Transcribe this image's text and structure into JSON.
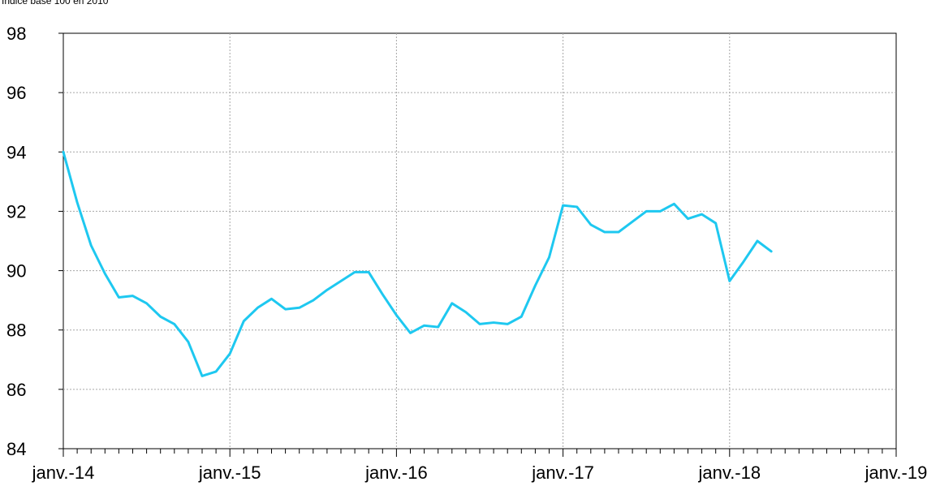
{
  "chart_data": {
    "type": "line",
    "title": "",
    "subtitle": "Indice base 100 en 2010",
    "xlabel": "",
    "ylabel": "",
    "ylim": [
      84,
      98
    ],
    "yticks": [
      84,
      86,
      88,
      90,
      92,
      94,
      96,
      98
    ],
    "xticks": [
      {
        "label": "janv.-14",
        "month": 0
      },
      {
        "label": "janv.-15",
        "month": 12
      },
      {
        "label": "janv.-16",
        "month": 24
      },
      {
        "label": "janv.-17",
        "month": 36
      },
      {
        "label": "janv.-18",
        "month": 48
      },
      {
        "label": "janv.-19",
        "month": 60
      }
    ],
    "xlim": [
      0,
      60
    ],
    "grid": true,
    "series": [
      {
        "color": "#1ec8f0",
        "months": [
          "2014-01",
          "2014-02",
          "2014-03",
          "2014-04",
          "2014-05",
          "2014-06",
          "2014-07",
          "2014-08",
          "2014-09",
          "2014-10",
          "2014-11",
          "2014-12",
          "2015-01",
          "2015-02",
          "2015-03",
          "2015-04",
          "2015-05",
          "2015-06",
          "2015-07",
          "2015-08",
          "2015-09",
          "2015-10",
          "2015-11",
          "2015-12",
          "2016-01",
          "2016-02",
          "2016-03",
          "2016-04",
          "2016-05",
          "2016-06",
          "2016-07",
          "2016-08",
          "2016-09",
          "2016-10",
          "2016-11",
          "2016-12",
          "2017-01",
          "2017-02",
          "2017-03",
          "2017-04",
          "2017-05",
          "2017-06",
          "2017-07",
          "2017-08",
          "2017-09",
          "2017-10",
          "2017-11",
          "2017-12",
          "2018-01",
          "2018-02",
          "2018-03",
          "2018-04"
        ],
        "values": [
          94.0,
          92.3,
          90.85,
          89.9,
          89.1,
          89.15,
          88.9,
          88.45,
          88.2,
          87.6,
          86.45,
          86.6,
          87.2,
          88.3,
          88.75,
          89.05,
          88.7,
          88.75,
          89.0,
          89.35,
          89.65,
          89.95,
          89.95,
          89.2,
          88.5,
          87.9,
          88.15,
          88.1,
          88.9,
          88.6,
          88.2,
          88.25,
          88.2,
          88.45,
          89.5,
          90.45,
          92.2,
          92.15,
          91.55,
          91.3,
          91.3,
          91.65,
          92.0,
          92.0,
          92.25,
          91.75,
          91.9,
          91.6,
          89.65,
          90.3,
          91.0,
          90.65
        ]
      }
    ]
  }
}
